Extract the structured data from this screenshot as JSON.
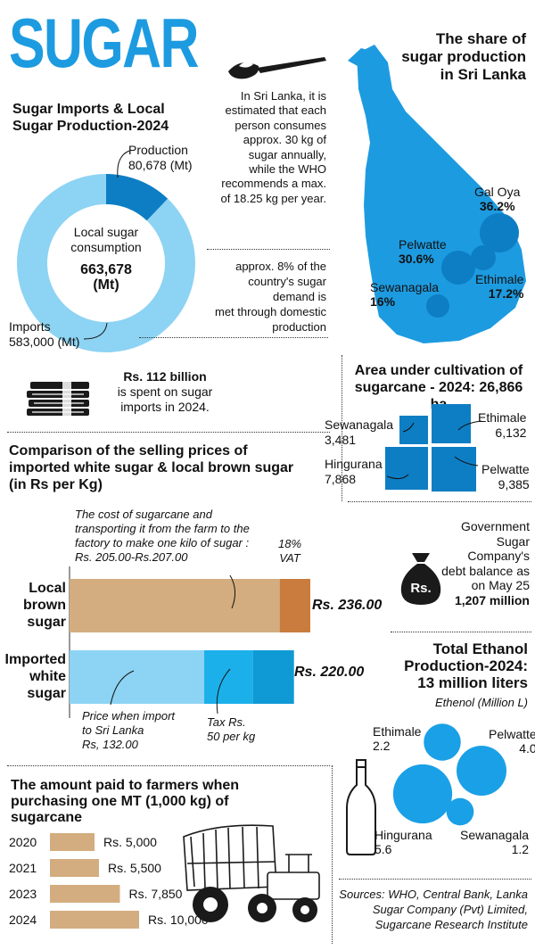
{
  "colors": {
    "blue_light": "#8dd3f3",
    "blue_mid": "#1ba7e0",
    "blue_dark": "#0d7ec4",
    "map_blue": "#1d9be0",
    "circle_blue": "#1aa0e6",
    "tan": "#d3ad7f",
    "tan_dark": "#c97c3e"
  },
  "header": {
    "title": "SUGAR",
    "map_title_line1": "The share of",
    "map_title_line2": "sugar production",
    "map_title_line3": "in Sri Lanka"
  },
  "icons": {
    "spoon": "sugar-spoon-icon",
    "money": "banknote-stack-icon",
    "bag": "money-bag-icon",
    "bottle": "bottle-icon",
    "tractor": "tractor-icon"
  },
  "consumption_note": {
    "lines": [
      "In Sri Lanka, it is",
      "estimated that each",
      "person consumes",
      "approx. 30 kg of",
      "sugar annually,",
      "while the WHO",
      "recommends a max.",
      "of 18.25 kg per year."
    ]
  },
  "demand_note": {
    "lines": [
      "approx. 8% of the",
      "country's sugar demand is",
      "met through domestic",
      "production"
    ]
  },
  "spending": {
    "amount": "Rs. 112 billion",
    "line2": "is spent on sugar",
    "line3": "imports in 2024."
  },
  "debt": {
    "lines": [
      "Government",
      "Sugar Company's",
      "debt balance as",
      "on May 25"
    ],
    "amount": "1,207 million",
    "bag_label": "Rs."
  },
  "sources": {
    "lines": [
      "Sources: WHO, Central Bank, Lanka",
      "Sugar Company (Pvt) Limited,",
      "Sugarcane Research Institute"
    ]
  },
  "chart_data": [
    {
      "type": "pie",
      "title_line1": "Sugar Imports & Local",
      "title_line2": "Sugar Production-2024",
      "center_line1": "Local sugar",
      "center_line2": "consumption",
      "center_value": "663,678",
      "center_unit": "(Mt)",
      "series": [
        {
          "name": "Production",
          "label": "80,678 (Mt)",
          "value": 80678
        },
        {
          "name": "Imports",
          "label": "583,000 (Mt)",
          "value": 583000
        }
      ]
    },
    {
      "type": "scatter",
      "subtype": "map-bubbles",
      "points": [
        {
          "name": "Gal Oya",
          "label": "36.2%",
          "value": 36.2
        },
        {
          "name": "Pelwatte",
          "label": "30.6%",
          "value": 30.6
        },
        {
          "name": "Ethimale",
          "label": "17.2%",
          "value": 17.2
        },
        {
          "name": "Sewanagala",
          "label": "16%",
          "value": 16
        }
      ]
    },
    {
      "type": "bar",
      "subtype": "treemap-squares",
      "title_line1": "Area under cultivation of",
      "title_line2": "sugarcane - 2024: 26,866 ha",
      "items": [
        {
          "name": "Sewanagala",
          "label": "3,481",
          "value": 3481
        },
        {
          "name": "Ethimale",
          "label": "6,132",
          "value": 6132
        },
        {
          "name": "Hingurana",
          "label": "7,868",
          "value": 7868
        },
        {
          "name": "Pelwatte",
          "label": "9,385",
          "value": 9385
        }
      ]
    },
    {
      "type": "bar",
      "subtype": "stacked-horizontal",
      "title_line1": "Comparison of the selling prices of",
      "title_line2": "imported white sugar & local brown sugar",
      "title_line3": "(in Rs per Kg)",
      "xlim": [
        0,
        236
      ],
      "bars": [
        {
          "label_lines": [
            "Local",
            "brown",
            "sugar"
          ],
          "total_label": "Rs. 236.00",
          "total": 236,
          "segments": [
            {
              "name": "cost",
              "value": 206,
              "color": "#d3ad7f"
            },
            {
              "name": "vat",
              "value": 30,
              "color": "#c97c3e"
            }
          ]
        },
        {
          "label_lines": [
            "Imported",
            "white",
            "sugar"
          ],
          "total_label": "Rs. 220.00",
          "total": 220,
          "segments": [
            {
              "name": "import",
              "value": 132,
              "color": "#8dd3f3"
            },
            {
              "name": "tax_a",
              "value": 48,
              "color": "#1bb0ea"
            },
            {
              "name": "tax_b",
              "value": 40,
              "color": "#0f9ad6"
            }
          ]
        }
      ],
      "annotations": {
        "cost_lines": [
          "The cost of sugarcane and",
          "transporting it from the farm to the",
          "factory to make one kilo of sugar :",
          "Rs. 205.00-Rs.207.00"
        ],
        "vat_lines": [
          "18%",
          "VAT"
        ],
        "import_lines": [
          "Price when import",
          "to Sri Lanka",
          "Rs, 132.00"
        ],
        "tax_lines": [
          "Tax Rs.",
          "50 per kg"
        ]
      }
    },
    {
      "type": "scatter",
      "subtype": "bubbles",
      "title_line1": "Total Ethanol",
      "title_line2": "Production-2024:",
      "title_line3": "13 million liters",
      "subtitle": "Ethenol (Million L)",
      "points": [
        {
          "name": "Ethimale",
          "label": "2.2",
          "value": 2.2
        },
        {
          "name": "Pelwatte",
          "label": "4.0",
          "value": 4.0
        },
        {
          "name": "Hingurana",
          "label": "5.6",
          "value": 5.6
        },
        {
          "name": "Sewanagala",
          "label": "1.2",
          "value": 1.2
        }
      ]
    },
    {
      "type": "bar",
      "subtype": "horizontal",
      "title_line1": "The amount paid to farmers when",
      "title_line2": "purchasing one MT (1,000 kg) of",
      "title_line3": "sugarcane",
      "categories": [
        "2020",
        "2021",
        "2023",
        "2024"
      ],
      "values": [
        5000,
        5500,
        7850,
        10000
      ],
      "value_labels": [
        "Rs. 5,000",
        "Rs. 5,500",
        "Rs. 7,850",
        "Rs. 10,000"
      ]
    }
  ]
}
